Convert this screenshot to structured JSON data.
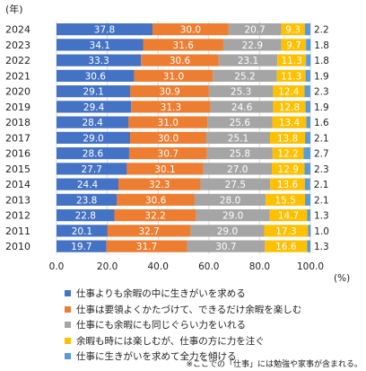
{
  "chart_data": {
    "type": "bar",
    "orientation": "horizontal",
    "stacked": true,
    "ylabel": "(年)",
    "xunit": "(%)",
    "categories": [
      "2024",
      "2023",
      "2022",
      "2021",
      "2020",
      "2019",
      "2018",
      "2017",
      "2016",
      "2015",
      "2014",
      "2013",
      "2012",
      "2011",
      "2010"
    ],
    "series": [
      {
        "name": "仕事よりも余暇の中に生きがいを求める",
        "color": "#4472c4",
        "values": [
          37.8,
          34.1,
          33.3,
          30.6,
          29.1,
          29.4,
          28.4,
          29.0,
          28.6,
          27.7,
          24.4,
          23.8,
          22.8,
          20.1,
          19.7
        ]
      },
      {
        "name": "仕事は要領よくかたづけて、できるだけ余暇を楽しむ",
        "color": "#ed7d31",
        "values": [
          30.0,
          31.6,
          30.6,
          31.0,
          30.9,
          31.3,
          31.0,
          30.0,
          30.7,
          30.1,
          32.3,
          30.6,
          32.2,
          32.7,
          31.7
        ]
      },
      {
        "name": "仕事にも余暇にも同じぐらい力をいれる",
        "color": "#a5a5a5",
        "values": [
          20.7,
          22.9,
          23.1,
          25.2,
          25.3,
          24.6,
          25.6,
          25.1,
          25.8,
          27.0,
          27.5,
          28.0,
          29.0,
          29.0,
          30.7
        ]
      },
      {
        "name": "余暇も時には楽しむが、仕事の方に力を注ぐ",
        "color": "#ffc000",
        "values": [
          9.3,
          9.7,
          11.3,
          11.3,
          12.4,
          12.8,
          13.4,
          13.8,
          12.2,
          12.9,
          13.6,
          15.5,
          14.7,
          17.3,
          16.6
        ]
      },
      {
        "name": "仕事に生きがいを求めて全力を傾ける",
        "color": "#5b9bd5",
        "values": [
          2.2,
          1.8,
          1.8,
          1.9,
          2.3,
          1.9,
          1.6,
          2.1,
          2.7,
          2.3,
          2.1,
          2.1,
          1.3,
          1.0,
          1.3
        ]
      }
    ],
    "xlim": [
      0,
      100
    ],
    "xticks": [
      "0.0",
      "20.0",
      "40.0",
      "60.0",
      "80.0",
      "100.0"
    ],
    "grid": true,
    "legend_position": "bottom"
  },
  "footnote": "※ここでの「仕事」には勉強や家事が含まれる。"
}
